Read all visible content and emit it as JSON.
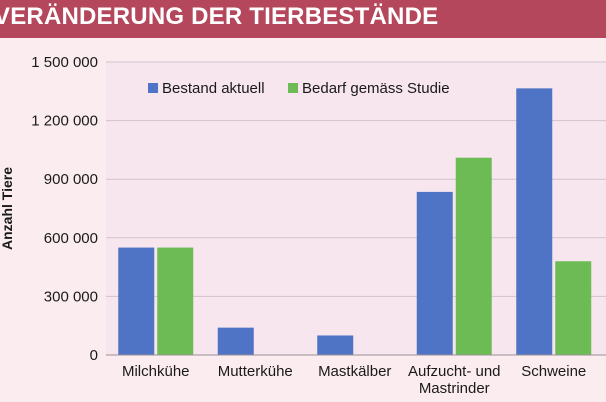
{
  "header": {
    "title": "VERÄNDERUNG DER TIERBESTÄNDE"
  },
  "colors": {
    "header_bg": "#b4475b",
    "plot_bg": "#f7e6ee",
    "series1": "#4f73c5",
    "series2": "#6dbb55"
  },
  "chart_data": {
    "type": "bar",
    "title": "VERÄNDERUNG DER TIERBESTÄNDE",
    "ylabel": "Anzahl Tiere",
    "xlabel": "",
    "ylim": [
      0,
      1500000
    ],
    "yticks": [
      0,
      300000,
      600000,
      900000,
      1200000,
      1500000
    ],
    "ytick_labels": [
      "0",
      "300 000",
      "600 000",
      "900 000",
      "1 200 000",
      "1 500 000"
    ],
    "categories": [
      "Milchkühe",
      "Mutterkühe",
      "Mastkälber",
      "Aufzucht- und Mastrinder",
      "Schweine"
    ],
    "category_lines": [
      [
        "Milchkühe"
      ],
      [
        "Mutterkühe"
      ],
      [
        "Mastkälber"
      ],
      [
        "Aufzucht- und",
        "Mastrinder"
      ],
      [
        "Schweine"
      ]
    ],
    "series": [
      {
        "name": "Bestand aktuell",
        "color": "#4f73c5",
        "values": [
          550000,
          140000,
          100000,
          835000,
          1365000
        ]
      },
      {
        "name": "Bedarf gemäss Studie",
        "color": "#6dbb55",
        "values": [
          550000,
          0,
          0,
          1010000,
          480000
        ]
      }
    ],
    "legend": {
      "position": "top-left"
    },
    "grid": {
      "y": true,
      "x": false
    }
  }
}
